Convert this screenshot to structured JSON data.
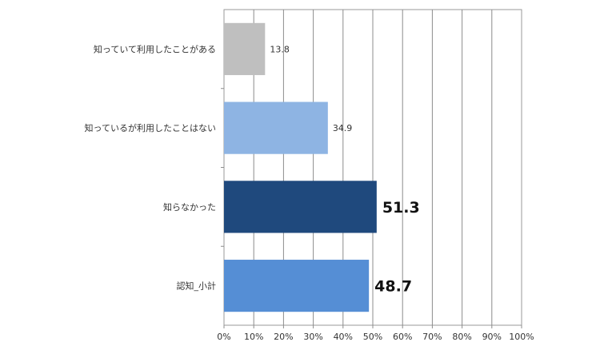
{
  "chart_data": {
    "type": "bar",
    "orientation": "horizontal",
    "categories": [
      "知っていて利用したことがある",
      "知っているが利用したことはない",
      "知らなかった",
      "認知_小計"
    ],
    "values": [
      13.8,
      34.9,
      51.3,
      48.7
    ],
    "value_labels": [
      "13.8",
      "34.9",
      "51.3",
      "48.7"
    ],
    "bar_colors": [
      "#BFBFBF",
      "#8EB4E3",
      "#1F497D",
      "#558ED5"
    ],
    "emphasized": [
      false,
      false,
      true,
      true
    ],
    "xlim": [
      0,
      100
    ],
    "x_ticks": [
      0,
      10,
      20,
      30,
      40,
      50,
      60,
      70,
      80,
      90,
      100
    ],
    "x_tick_labels": [
      "0%",
      "10%",
      "20%",
      "30%",
      "40%",
      "50%",
      "60%",
      "70%",
      "80%",
      "90%",
      "100%"
    ],
    "grid": true,
    "title": "",
    "xlabel": "",
    "ylabel": ""
  }
}
